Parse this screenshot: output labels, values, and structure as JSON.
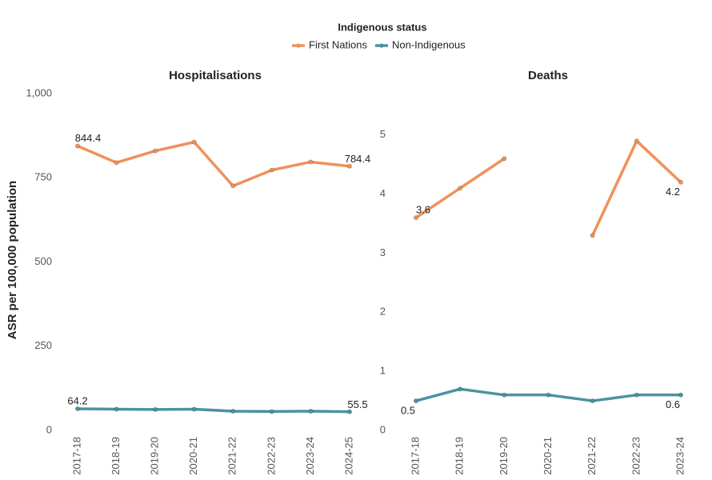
{
  "legend": {
    "title": "Indigenous status"
  },
  "y_label": "ASR per 100,000 population",
  "chart_data": [
    {
      "type": "line",
      "title": "Hospitalisations",
      "categories": [
        "2017-18",
        "2018-19",
        "2019-20",
        "2020-21",
        "2021-22",
        "2022-23",
        "2023-24",
        "2024-25"
      ],
      "ylim": [
        0,
        1000
      ],
      "yticks": [
        0,
        250,
        500,
        750,
        {
          "value": 1000,
          "label": "1,000"
        }
      ],
      "series": [
        {
          "name": "First Nations",
          "color": "#f0915a",
          "values": [
            844.4,
            795,
            830,
            856,
            726,
            773,
            797,
            784.4
          ],
          "value_labels": [
            "844.4",
            null,
            null,
            null,
            null,
            null,
            null,
            "784.4"
          ]
        },
        {
          "name": "Non-Indigenous",
          "color": "#4b93a1",
          "values": [
            64.2,
            63,
            62,
            63,
            57,
            56,
            57,
            55.5
          ],
          "value_labels": [
            "64.2",
            null,
            null,
            null,
            null,
            null,
            null,
            "55.5"
          ]
        }
      ]
    },
    {
      "type": "line",
      "title": "Deaths",
      "categories": [
        "2017-18",
        "2018-19",
        "2019-20",
        "2020-21",
        "2021-22",
        "2022-23",
        "2023-24"
      ],
      "ylim": [
        0,
        5.7
      ],
      "yticks": [
        0,
        1,
        2,
        3,
        4,
        5
      ],
      "series": [
        {
          "name": "First Nations",
          "color": "#f0915a",
          "values": [
            3.6,
            4.1,
            4.6,
            null,
            3.3,
            4.9,
            4.2
          ],
          "value_labels": [
            "3.6",
            null,
            null,
            null,
            null,
            null,
            "4.2"
          ]
        },
        {
          "name": "Non-Indigenous",
          "color": "#4b93a1",
          "values": [
            0.5,
            0.7,
            0.6,
            0.6,
            0.5,
            0.6,
            0.6
          ],
          "value_labels": [
            "0.5",
            null,
            null,
            null,
            null,
            null,
            "0.6"
          ]
        }
      ]
    }
  ]
}
